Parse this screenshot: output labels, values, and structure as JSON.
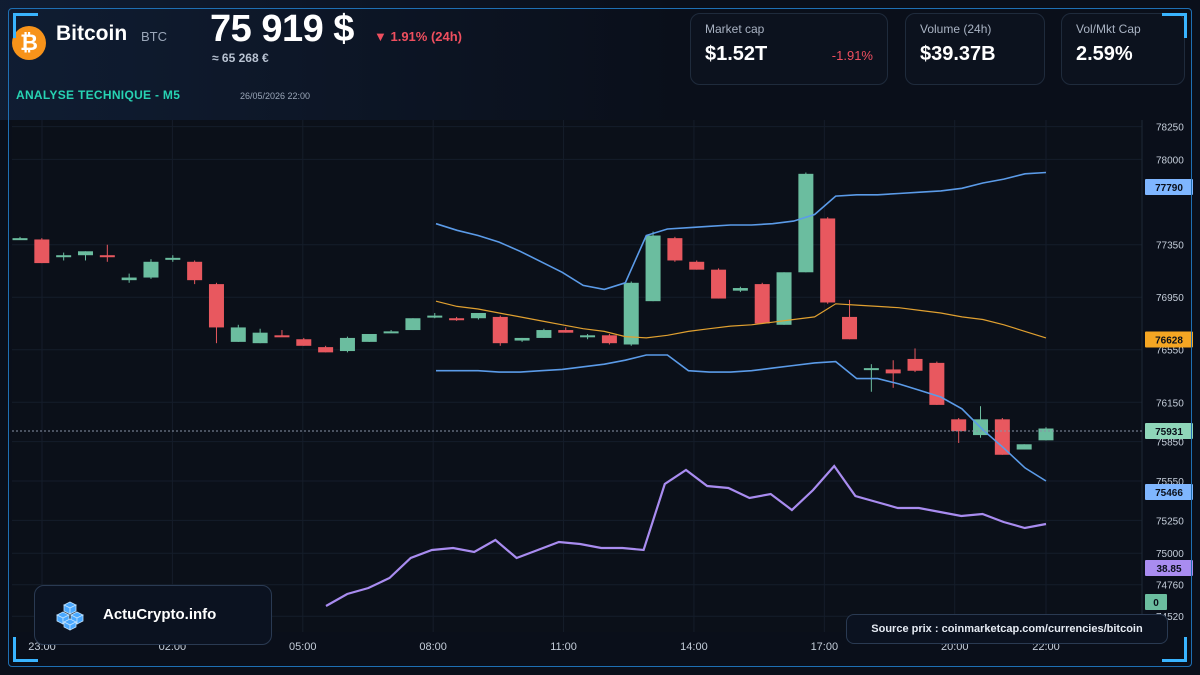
{
  "header": {
    "coin_name": "Bitcoin",
    "coin_symbol": "BTC",
    "price": "75 919 $",
    "change": "▼ 1.91% (24h)",
    "price_eur": "≈ 65 268 €",
    "section_title": "ANALYSE TECHNIQUE - M5",
    "section_date": "26/05/2026 22:00"
  },
  "stats": [
    {
      "label": "Market cap",
      "value": "$1.52T",
      "sub": "-1.91%"
    },
    {
      "label": "Volume (24h)",
      "value": "$39.37B",
      "sub": ""
    },
    {
      "label": "Vol/Mkt Cap",
      "value": "2.59%",
      "sub": ""
    }
  ],
  "brand": {
    "name": "ActuCrypto.info"
  },
  "source": "Source prix : coinmarketcap.com/currencies/bitcoin",
  "colors": {
    "up": "#6bbd9f",
    "down": "#e8585f",
    "bollinger": "#5b9be8",
    "sma": "#e0a030",
    "rsi": "#a98cf0",
    "accent": "#27d3b3",
    "frame": "#1e6fb3"
  },
  "chart_data": {
    "type": "candlestick",
    "x_ticks": [
      "23:00",
      "02:00",
      "05:00",
      "08:00",
      "11:00",
      "14:00",
      "17:00",
      "20:00",
      "22:00"
    ],
    "y_ticks": [
      78250,
      78000,
      77350,
      76950,
      76550,
      76150,
      75850,
      75550,
      75250,
      75000,
      74760,
      74520
    ],
    "ylim": [
      74400,
      78300
    ],
    "candles": [
      {
        "o": 77400,
        "h": 77410,
        "l": 77390,
        "c": 77400
      },
      {
        "o": 77390,
        "h": 77400,
        "l": 77210,
        "c": 77210
      },
      {
        "o": 77260,
        "h": 77290,
        "l": 77230,
        "c": 77270
      },
      {
        "o": 77270,
        "h": 77300,
        "l": 77230,
        "c": 77300
      },
      {
        "o": 77270,
        "h": 77350,
        "l": 77220,
        "c": 77260
      },
      {
        "o": 77080,
        "h": 77130,
        "l": 77060,
        "c": 77100
      },
      {
        "o": 77100,
        "h": 77240,
        "l": 77090,
        "c": 77220
      },
      {
        "o": 77240,
        "h": 77270,
        "l": 77220,
        "c": 77250
      },
      {
        "o": 77220,
        "h": 77230,
        "l": 77050,
        "c": 77080
      },
      {
        "o": 77050,
        "h": 77060,
        "l": 76600,
        "c": 76720
      },
      {
        "o": 76610,
        "h": 76740,
        "l": 76610,
        "c": 76720
      },
      {
        "o": 76600,
        "h": 76710,
        "l": 76600,
        "c": 76680
      },
      {
        "o": 76660,
        "h": 76700,
        "l": 76650,
        "c": 76650
      },
      {
        "o": 76630,
        "h": 76640,
        "l": 76580,
        "c": 76580
      },
      {
        "o": 76570,
        "h": 76580,
        "l": 76530,
        "c": 76530
      },
      {
        "o": 76540,
        "h": 76650,
        "l": 76530,
        "c": 76640
      },
      {
        "o": 76610,
        "h": 76670,
        "l": 76610,
        "c": 76670
      },
      {
        "o": 76690,
        "h": 76700,
        "l": 76690,
        "c": 76690
      },
      {
        "o": 76700,
        "h": 76790,
        "l": 76700,
        "c": 76790
      },
      {
        "o": 76810,
        "h": 76830,
        "l": 76790,
        "c": 76810
      },
      {
        "o": 76790,
        "h": 76800,
        "l": 76770,
        "c": 76780
      },
      {
        "o": 76790,
        "h": 76830,
        "l": 76780,
        "c": 76830
      },
      {
        "o": 76800,
        "h": 76810,
        "l": 76580,
        "c": 76600
      },
      {
        "o": 76620,
        "h": 76640,
        "l": 76610,
        "c": 76640
      },
      {
        "o": 76640,
        "h": 76710,
        "l": 76640,
        "c": 76700
      },
      {
        "o": 76700,
        "h": 76720,
        "l": 76680,
        "c": 76680
      },
      {
        "o": 76660,
        "h": 76670,
        "l": 76630,
        "c": 76660
      },
      {
        "o": 76660,
        "h": 76670,
        "l": 76590,
        "c": 76600
      },
      {
        "o": 76590,
        "h": 77070,
        "l": 76580,
        "c": 77060
      },
      {
        "o": 76920,
        "h": 77450,
        "l": 76920,
        "c": 77420
      },
      {
        "o": 77400,
        "h": 77410,
        "l": 77220,
        "c": 77230
      },
      {
        "o": 77220,
        "h": 77230,
        "l": 77160,
        "c": 77160
      },
      {
        "o": 77160,
        "h": 77170,
        "l": 76940,
        "c": 76940
      },
      {
        "o": 77000,
        "h": 77030,
        "l": 76990,
        "c": 77020
      },
      {
        "o": 77050,
        "h": 77060,
        "l": 76750,
        "c": 76750
      },
      {
        "o": 76740,
        "h": 77140,
        "l": 76740,
        "c": 77140
      },
      {
        "o": 77140,
        "h": 77900,
        "l": 77140,
        "c": 77890
      },
      {
        "o": 77550,
        "h": 77560,
        "l": 76900,
        "c": 76910
      },
      {
        "o": 76800,
        "h": 76930,
        "l": 76630,
        "c": 76630
      },
      {
        "o": 76400,
        "h": 76440,
        "l": 76230,
        "c": 76410
      },
      {
        "o": 76400,
        "h": 76470,
        "l": 76260,
        "c": 76370
      },
      {
        "o": 76480,
        "h": 76560,
        "l": 76380,
        "c": 76390
      },
      {
        "o": 76450,
        "h": 76460,
        "l": 76130,
        "c": 76130
      },
      {
        "o": 76020,
        "h": 76030,
        "l": 75840,
        "c": 75930
      },
      {
        "o": 75900,
        "h": 76120,
        "l": 75880,
        "c": 76020
      },
      {
        "o": 76020,
        "h": 76030,
        "l": 75750,
        "c": 75750
      },
      {
        "o": 75790,
        "h": 75830,
        "l": 75790,
        "c": 75830
      },
      {
        "o": 75860,
        "h": 75960,
        "l": 75860,
        "c": 75950
      }
    ],
    "upper_band": [
      77510,
      77460,
      77420,
      77370,
      77300,
      77220,
      77140,
      77040,
      77010,
      77060,
      77420,
      77470,
      77480,
      77490,
      77500,
      77500,
      77510,
      77530,
      77580,
      77720,
      77730,
      77730,
      77740,
      77750,
      77760,
      77780,
      77820,
      77850,
      77890,
      77900
    ],
    "middle_sma": [
      76920,
      76880,
      76860,
      76830,
      76800,
      76770,
      76740,
      76710,
      76690,
      76650,
      76640,
      76660,
      76690,
      76710,
      76730,
      76740,
      76760,
      76780,
      76800,
      76900,
      76890,
      76880,
      76870,
      76850,
      76830,
      76800,
      76780,
      76740,
      76690,
      76640
    ],
    "lower_band": [
      76390,
      76390,
      76390,
      76380,
      76380,
      76390,
      76400,
      76420,
      76440,
      76470,
      76510,
      76510,
      76390,
      76380,
      76380,
      76390,
      76410,
      76430,
      76450,
      76460,
      76330,
      76330,
      76290,
      76240,
      76190,
      76100,
      75940,
      75800,
      75650,
      75550
    ],
    "rsi": [
      2,
      8,
      11,
      16,
      26,
      30,
      31,
      29,
      35,
      26,
      30,
      34,
      33,
      31,
      31,
      30,
      63,
      70,
      62,
      61,
      56,
      58,
      50,
      60,
      72,
      57,
      54,
      51,
      51,
      49,
      47,
      48,
      44,
      41,
      43
    ],
    "price_labels": [
      {
        "label": "77790",
        "value": 77790,
        "color": "#7fb6ff"
      },
      {
        "label": "76628",
        "value": 76628,
        "color": "#f5a623"
      },
      {
        "label": "75931",
        "value": 75931,
        "color": "#8fd6b9"
      },
      {
        "label": "75466",
        "value": 75466,
        "color": "#7fb6ff"
      }
    ],
    "rsi_labels": [
      {
        "label": "38.85",
        "color": "#a98cf0"
      },
      {
        "label": "0",
        "color": "#6bbd9f"
      }
    ]
  }
}
